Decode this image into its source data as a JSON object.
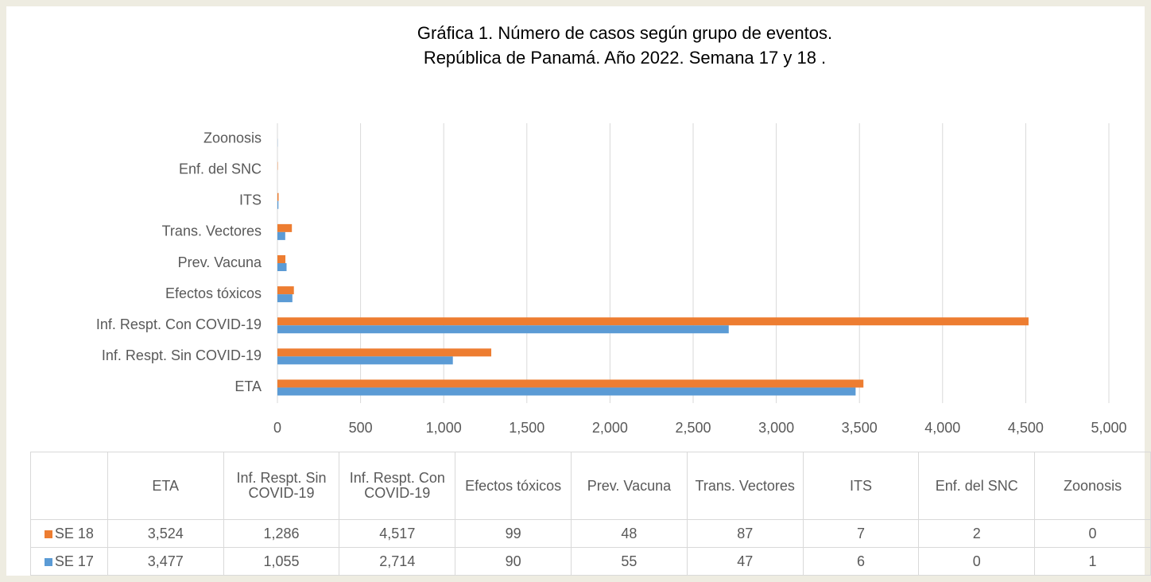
{
  "chart_data": {
    "type": "barh",
    "title": "Gráfica 1. Número de casos según grupo de eventos.",
    "subtitle": "República de Panamá. Año 2022. Semana 17 y 18 .",
    "categories": [
      "ETA",
      "Inf.  Respt. Sin COVID-19",
      "Inf.  Respt. Con COVID-19",
      "Efectos tóxicos ",
      "Prev. Vacuna",
      "Trans. Vectores",
      "ITS",
      "Enf. del SNC",
      "Zoonosis"
    ],
    "series": [
      {
        "name": "SE 18",
        "color": "#ed7d31",
        "values": [
          3524,
          1286,
          4517,
          99,
          48,
          87,
          7,
          2,
          0
        ],
        "value_labels": [
          "3,524",
          "1,286",
          "4,517",
          "99",
          "48",
          "87",
          "7",
          "2",
          "0"
        ]
      },
      {
        "name": "SE 17",
        "color": "#5b9bd5",
        "values": [
          3477,
          1055,
          2714,
          90,
          55,
          47,
          6,
          0,
          1
        ],
        "value_labels": [
          "3,477",
          "1,055",
          "2,714",
          "90",
          "55",
          "47",
          "6",
          "0",
          "1"
        ]
      }
    ],
    "xlim": [
      0,
      5000
    ],
    "xticks": [
      0,
      500,
      {
        "value": 1000,
        "label": "1,000"
      },
      {
        "value": 1500,
        "label": "1,500"
      },
      {
        "value": 2000,
        "label": "2,000"
      },
      {
        "value": 2500,
        "label": "2,500"
      },
      {
        "value": 3000,
        "label": "3,000"
      },
      {
        "value": 3500,
        "label": "3,500"
      },
      {
        "value": 4000,
        "label": "4,000"
      },
      {
        "value": 4500,
        "label": "4,500"
      },
      {
        "value": 5000,
        "label": "5,000"
      }
    ],
    "grid": true
  }
}
